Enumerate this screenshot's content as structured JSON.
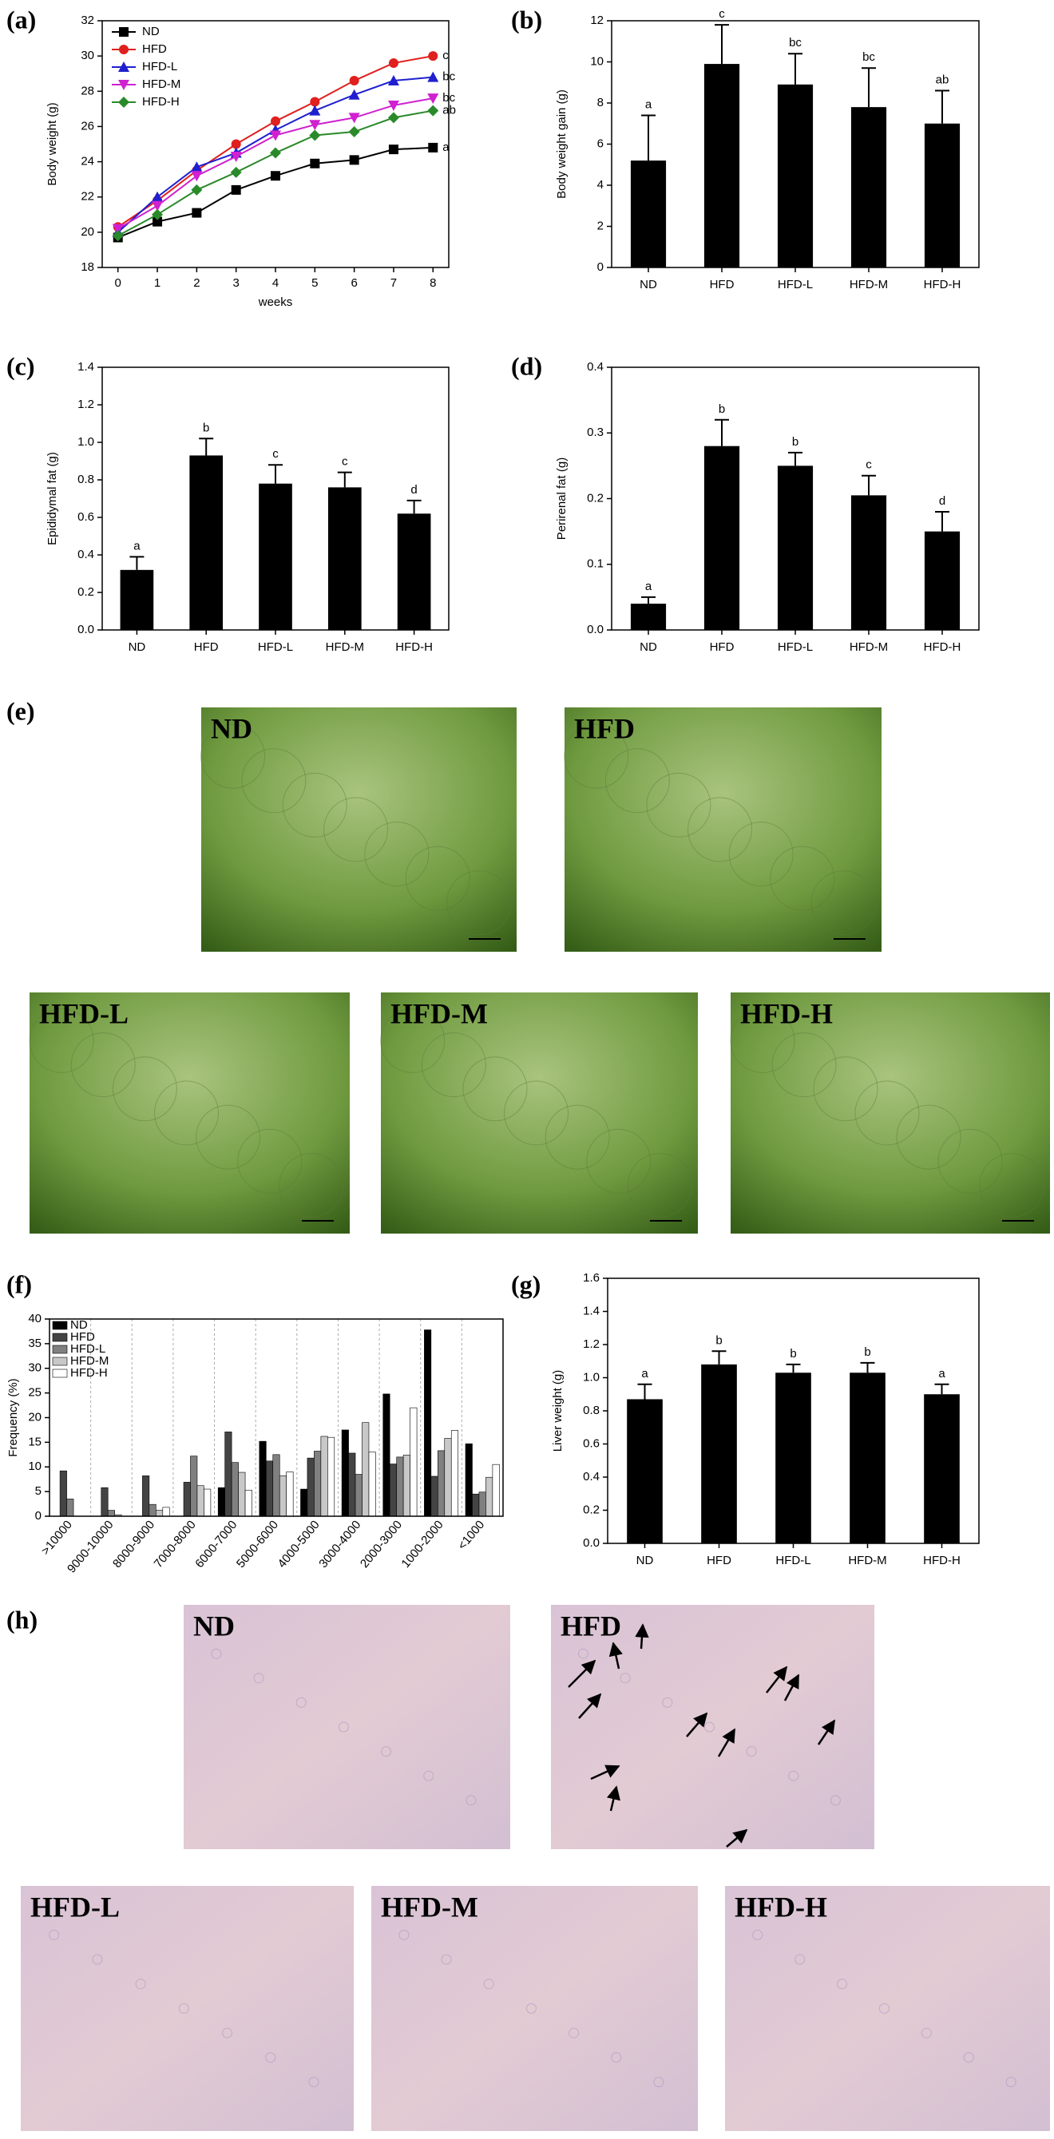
{
  "chart_data": [
    {
      "type": "line",
      "panel_label": "(a)",
      "xlabel": "weeks",
      "ylabel": "Body weight (g)",
      "x": [
        0,
        1,
        2,
        3,
        4,
        5,
        6,
        7,
        8
      ],
      "xlim": [
        -0.4,
        8.4
      ],
      "xticks": [
        0,
        1,
        2,
        3,
        4,
        5,
        6,
        7,
        8
      ],
      "ylim": [
        18,
        32
      ],
      "yticks": [
        18,
        20,
        22,
        24,
        26,
        28,
        30,
        32
      ],
      "legend": "upper-left",
      "series": [
        {
          "name": "ND",
          "color": "#000000",
          "marker": "square",
          "label": "a",
          "values": [
            19.7,
            20.6,
            21.1,
            22.4,
            23.2,
            23.9,
            24.1,
            24.7,
            24.8
          ]
        },
        {
          "name": "HFD",
          "color": "#e0201e",
          "marker": "circle",
          "label": "c",
          "values": [
            20.3,
            21.8,
            23.5,
            25.0,
            26.3,
            27.4,
            28.6,
            29.6,
            30.0
          ]
        },
        {
          "name": "HFD-L",
          "color": "#1f1fd0",
          "marker": "triangle",
          "label": "bc",
          "values": [
            20.0,
            22.0,
            23.7,
            24.5,
            25.8,
            26.9,
            27.8,
            28.6,
            28.8
          ]
        },
        {
          "name": "HFD-M",
          "color": "#d020d0",
          "marker": "triangle-down",
          "label": "bc",
          "values": [
            20.2,
            21.5,
            23.2,
            24.3,
            25.5,
            26.1,
            26.5,
            27.2,
            27.6
          ]
        },
        {
          "name": "HFD-H",
          "color": "#2a8a2a",
          "marker": "diamond",
          "label": "ab",
          "values": [
            19.8,
            21.0,
            22.4,
            23.4,
            24.5,
            25.5,
            25.7,
            26.5,
            26.9
          ]
        }
      ]
    },
    {
      "type": "bar",
      "panel_label": "(b)",
      "ylabel": "Body weight gain (g)",
      "color": "#000000",
      "categories": [
        "ND",
        "HFD",
        "HFD-L",
        "HFD-M",
        "HFD-H"
      ],
      "values": [
        5.2,
        9.9,
        8.9,
        7.8,
        7.0
      ],
      "errors": [
        2.2,
        1.9,
        1.5,
        1.9,
        1.6
      ],
      "annotations": [
        "a",
        "c",
        "bc",
        "bc",
        "ab"
      ],
      "ylim": [
        0,
        12
      ],
      "yticks": [
        0,
        2,
        4,
        6,
        8,
        10,
        12
      ]
    },
    {
      "type": "bar",
      "panel_label": "(c)",
      "ylabel": "Epididymal fat (g)",
      "color": "#000000",
      "categories": [
        "ND",
        "HFD",
        "HFD-L",
        "HFD-M",
        "HFD-H"
      ],
      "values": [
        0.32,
        0.93,
        0.78,
        0.76,
        0.62
      ],
      "errors": [
        0.07,
        0.09,
        0.1,
        0.08,
        0.07
      ],
      "annotations": [
        "a",
        "b",
        "c",
        "c",
        "d"
      ],
      "ylim": [
        0,
        1.4
      ],
      "yticks": [
        {
          "value": 0,
          "label": "0.0"
        },
        0.2,
        0.4,
        0.6,
        0.8,
        {
          "value": 1,
          "label": "1.0"
        },
        1.2,
        1.4
      ]
    },
    {
      "type": "bar",
      "panel_label": "(d)",
      "ylabel": "Perirenal fat (g)",
      "color": "#000000",
      "categories": [
        "ND",
        "HFD",
        "HFD-L",
        "HFD-M",
        "HFD-H"
      ],
      "values": [
        0.04,
        0.28,
        0.25,
        0.205,
        0.15
      ],
      "errors": [
        0.01,
        0.04,
        0.02,
        0.03,
        0.03
      ],
      "annotations": [
        "a",
        "b",
        "b",
        "c",
        "d"
      ],
      "ylim": [
        0,
        0.4
      ],
      "yticks": [
        {
          "value": 0,
          "label": "0.0"
        },
        0.1,
        0.2,
        0.3,
        0.4
      ]
    },
    {
      "type": "bar",
      "panel_label": "(f)",
      "ylabel": "Frequency (%)",
      "legend": "upper-left",
      "categories": [
        ">10000",
        "9000-10000",
        "8000-9000",
        "7000-8000",
        "6000-7000",
        "5000-6000",
        "4000-5000",
        "3000-4000",
        "2000-3000",
        "1000-2000",
        "<1000"
      ],
      "ylim": [
        0,
        40
      ],
      "yticks": [
        0,
        5,
        10,
        15,
        20,
        25,
        30,
        35,
        40
      ],
      "series": [
        {
          "name": "ND",
          "color": "#000000",
          "values": [
            0,
            0,
            0,
            0,
            5.8,
            15.2,
            5.5,
            17.5,
            24.8,
            37.8,
            14.7
          ]
        },
        {
          "name": "HFD",
          "color": "#444444",
          "values": [
            9.2,
            5.8,
            8.2,
            6.9,
            17.1,
            11.2,
            11.8,
            12.8,
            10.6,
            8.1,
            4.5
          ]
        },
        {
          "name": "HFD-L",
          "color": "#808080",
          "values": [
            3.5,
            1.2,
            2.4,
            12.2,
            10.9,
            12.5,
            13.2,
            8.5,
            12.0,
            13.3,
            4.9
          ]
        },
        {
          "name": "HFD-M",
          "color": "#c8c8c8",
          "values": [
            0,
            0.3,
            1.2,
            6.2,
            8.9,
            8.2,
            16.2,
            19.0,
            12.4,
            15.8,
            7.9
          ]
        },
        {
          "name": "HFD-H",
          "color": "#ffffff",
          "values": [
            0,
            0,
            1.8,
            5.5,
            5.3,
            9.0,
            16.0,
            13.0,
            22.0,
            17.4,
            10.5
          ]
        }
      ]
    },
    {
      "type": "bar",
      "panel_label": "(g)",
      "ylabel": "Liver weight (g)",
      "color": "#000000",
      "categories": [
        "ND",
        "HFD",
        "HFD-L",
        "HFD-M",
        "HFD-H"
      ],
      "values": [
        0.87,
        1.08,
        1.03,
        1.03,
        0.9
      ],
      "errors": [
        0.09,
        0.08,
        0.05,
        0.06,
        0.06
      ],
      "annotations": [
        "a",
        "b",
        "b",
        "b",
        "a"
      ],
      "ylim": [
        0,
        1.6
      ],
      "yticks": [
        {
          "value": 0,
          "label": "0.0"
        },
        0.2,
        0.4,
        0.6,
        0.8,
        {
          "value": 1,
          "label": "1.0"
        },
        1.2,
        1.4,
        1.6
      ]
    }
  ],
  "micrographs": [
    {
      "panel_label": "(e)",
      "images": [
        "ND",
        "HFD",
        "HFD-L",
        "HFD-M",
        "HFD-H"
      ]
    },
    {
      "panel_label": "(h)",
      "images": [
        "ND",
        "HFD",
        "HFD-L",
        "HFD-M",
        "HFD-H"
      ]
    }
  ]
}
